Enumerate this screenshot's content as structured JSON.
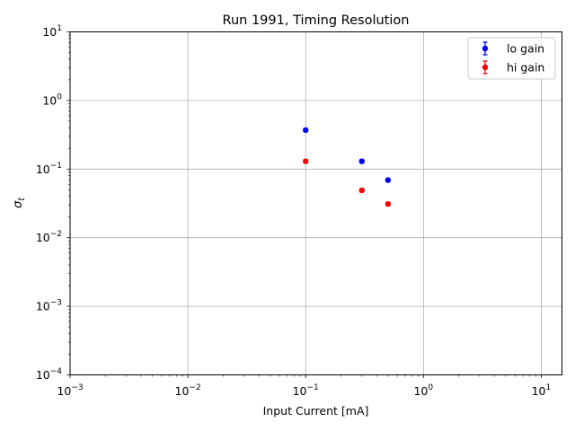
{
  "chart_data": {
    "type": "scatter",
    "title": "Run 1991, Timing Resolution",
    "xlabel": "Input Current [mA]",
    "ylabel": "σ",
    "ylabel_subscript": "t",
    "xscale": "log",
    "yscale": "log",
    "xlim": [
      0.001,
      15
    ],
    "ylim": [
      0.0001,
      10
    ],
    "grid": true,
    "legend_position": "top-right",
    "x_ticks": [
      {
        "value": 0.001,
        "base": "10",
        "exp": "−3"
      },
      {
        "value": 0.01,
        "base": "10",
        "exp": "−2"
      },
      {
        "value": 0.1,
        "base": "10",
        "exp": "−1"
      },
      {
        "value": 1,
        "base": "10",
        "exp": "0"
      },
      {
        "value": 10,
        "base": "10",
        "exp": "1"
      }
    ],
    "y_ticks": [
      {
        "value": 0.0001,
        "base": "10",
        "exp": "−4"
      },
      {
        "value": 0.001,
        "base": "10",
        "exp": "−3"
      },
      {
        "value": 0.01,
        "base": "10",
        "exp": "−2"
      },
      {
        "value": 0.1,
        "base": "10",
        "exp": "−1"
      },
      {
        "value": 1,
        "base": "10",
        "exp": "0"
      },
      {
        "value": 10,
        "base": "10",
        "exp": "1"
      }
    ],
    "series": [
      {
        "name": "lo gain",
        "color": "#0000ff",
        "x": [
          0.1,
          0.3,
          0.5
        ],
        "y": [
          0.37,
          0.13,
          0.069
        ]
      },
      {
        "name": "hi gain",
        "color": "#ff0000",
        "x": [
          0.1,
          0.3,
          0.5
        ],
        "y": [
          0.13,
          0.049,
          0.031
        ]
      }
    ]
  }
}
